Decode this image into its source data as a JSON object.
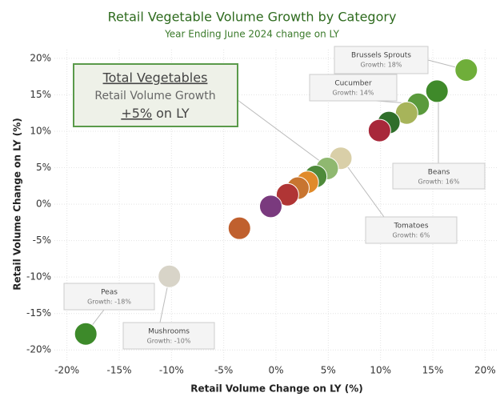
{
  "chart_data": {
    "type": "scatter",
    "title": "Retail Vegetable Volume Growth by Category",
    "subtitle": "Year Ending June 2024 change on LY",
    "x_label": "Retail Volume Change on LY (%)",
    "y_label": "Retail Volume Change on LY (%)",
    "x": [
      18.2,
      15.4,
      13.6,
      12.5,
      10.8,
      9.9,
      6.2,
      4.9,
      3.8,
      3.0,
      2.1,
      1.1,
      -0.5,
      -3.5,
      -10.2,
      -18.2
    ],
    "values": [
      18.4,
      15.5,
      13.7,
      12.5,
      11.2,
      10.1,
      6.3,
      4.9,
      3.8,
      3.0,
      2.2,
      1.3,
      -0.3,
      -3.3,
      -9.9,
      -17.8
    ],
    "colors": [
      "#6fae3a",
      "#3f8a2a",
      "#5a9a3c",
      "#a7b45a",
      "#2f6e2a",
      "#a8283a",
      "#d9cfa8",
      "#8fb870",
      "#4e8a3a",
      "#e08a2a",
      "#c87530",
      "#b03535",
      "#7a3a7e",
      "#c0602e",
      "#d8d4c8",
      "#3d8a2a"
    ],
    "xlim": [
      -21.2,
      21.2
    ],
    "ylim": [
      -21.4,
      21.2
    ],
    "xticks": [
      {
        "value": -20,
        "label": "-20%"
      },
      {
        "value": -15,
        "label": "-15%"
      },
      {
        "value": -10,
        "label": "-10%"
      },
      {
        "value": -5,
        "label": "-5%"
      },
      {
        "value": 0,
        "label": "0%"
      },
      {
        "value": 5,
        "label": "5%"
      },
      {
        "value": 10,
        "label": "10%"
      },
      {
        "value": 15,
        "label": "15%"
      },
      {
        "value": 20,
        "label": "20%"
      }
    ],
    "yticks": [
      {
        "value": -20,
        "label": "-20%"
      },
      {
        "value": -15,
        "label": "-15%"
      },
      {
        "value": -10,
        "label": "-10%"
      },
      {
        "value": -5,
        "label": "-5%"
      },
      {
        "value": 0,
        "label": "0%"
      },
      {
        "value": 5,
        "label": "5%"
      },
      {
        "value": 10,
        "label": "10%"
      },
      {
        "value": 15,
        "label": "15%"
      },
      {
        "value": 20,
        "label": "20%"
      }
    ],
    "grid": true,
    "annotations": [
      {
        "title": "Brussels Sprouts",
        "text": "Growth: 18%"
      },
      {
        "title": "Cucumber",
        "text": "Growth: 14%"
      },
      {
        "title": "Beans",
        "text": "Growth: 16%"
      },
      {
        "title": "Tomatoes",
        "text": "Growth: 6%"
      },
      {
        "title": "Peas",
        "text": "Growth: -18%"
      },
      {
        "title": "Mushrooms",
        "text": "Growth: -10%"
      }
    ],
    "callout": {
      "title": "Total Vegetables",
      "line": "Retail Volume Growth",
      "value": "+5%",
      "suffix": "on LY"
    }
  }
}
